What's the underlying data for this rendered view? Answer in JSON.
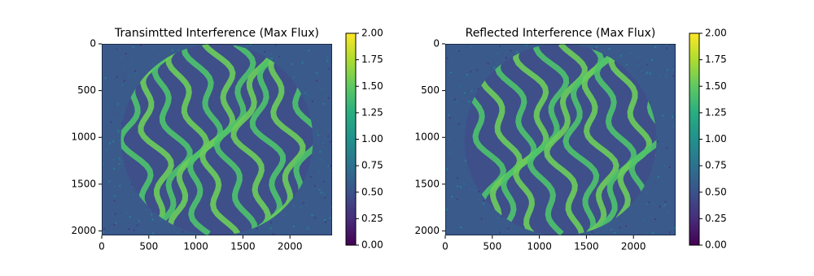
{
  "chart_data": [
    {
      "type": "image",
      "title": "Transimtted Interference (Max Flux)",
      "colormap": "viridis",
      "xlim": [
        0,
        2448
      ],
      "ylim": [
        2048,
        0
      ],
      "xticks": [
        0,
        500,
        1000,
        1500,
        2000
      ],
      "yticks": [
        0,
        500,
        1000,
        1500,
        2000
      ],
      "clim": [
        0,
        2
      ],
      "cticks": [
        {
          "value": 0,
          "label": "0.00"
        },
        {
          "value": 0.25,
          "label": "0.25"
        },
        {
          "value": 0.5,
          "label": "0.50"
        },
        {
          "value": 0.75,
          "label": "0.75"
        },
        {
          "value": 1,
          "label": "1.00"
        },
        {
          "value": 1.25,
          "label": "1.25"
        },
        {
          "value": 1.5,
          "label": "1.50"
        },
        {
          "value": 1.75,
          "label": "1.75"
        },
        {
          "value": 2,
          "label": "2.00"
        }
      ]
    },
    {
      "type": "image",
      "title": "Reflected Interference (Max Flux)",
      "colormap": "viridis",
      "xlim": [
        0,
        2448
      ],
      "ylim": [
        2048,
        0
      ],
      "xticks": [
        0,
        500,
        1000,
        1500,
        2000
      ],
      "yticks": [
        0,
        500,
        1000,
        1500,
        2000
      ],
      "clim": [
        0,
        2
      ],
      "cticks": [
        {
          "value": 0,
          "label": "0.00"
        },
        {
          "value": 0.25,
          "label": "0.25"
        },
        {
          "value": 0.5,
          "label": "0.50"
        },
        {
          "value": 0.75,
          "label": "0.75"
        },
        {
          "value": 1,
          "label": "1.00"
        },
        {
          "value": 1.25,
          "label": "1.25"
        },
        {
          "value": 1.5,
          "label": "1.50"
        },
        {
          "value": 1.75,
          "label": "1.75"
        },
        {
          "value": 2,
          "label": "2.00"
        }
      ]
    }
  ]
}
